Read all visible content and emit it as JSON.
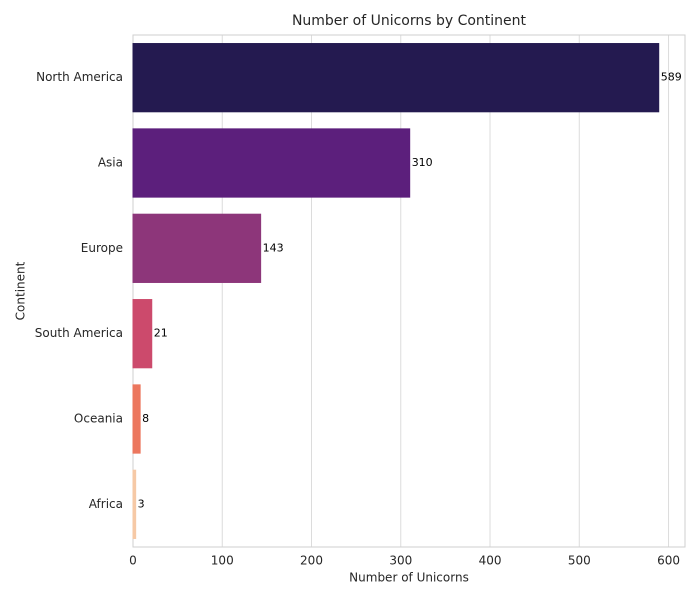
{
  "chart_data": {
    "type": "bar",
    "orientation": "horizontal",
    "title": "Number of Unicorns by Continent",
    "x_label": "Number of Unicorns",
    "y_label": "Continent",
    "categories": [
      "North America",
      "Asia",
      "Europe",
      "South America",
      "Oceania",
      "Africa"
    ],
    "values": [
      589,
      310,
      143,
      21,
      8,
      3
    ],
    "colors": [
      "#241a50",
      "#5c1f7c",
      "#8d367a",
      "#cc4a6c",
      "#ec775e",
      "#f6c9a6"
    ],
    "xlim": [
      0,
      618.45
    ],
    "xticks": [
      0,
      100,
      200,
      300,
      400,
      500,
      600
    ],
    "grid": true
  }
}
